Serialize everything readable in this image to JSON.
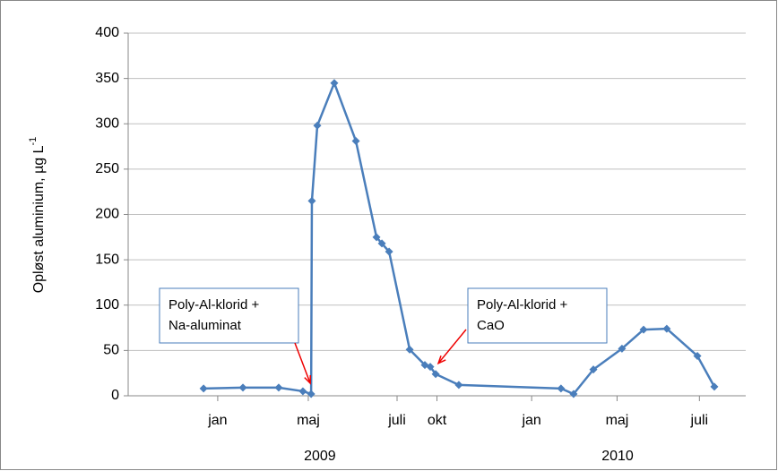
{
  "chart_data": {
    "type": "line",
    "y_label": "Opløst aluminium,  µg L",
    "y_label_sup": "-1",
    "x": [
      2.93,
      4.46,
      5.85,
      6.79,
      7.11,
      7.14,
      7.35,
      8.01,
      8.85,
      9.65,
      9.86,
      10.14,
      10.94,
      11.53,
      11.74,
      11.95,
      12.85,
      16.82,
      17.31,
      18.08,
      19.19,
      20.03,
      20.93,
      22.12,
      22.78
    ],
    "series": [
      {
        "name": "Opløst aluminium",
        "color": "#4a7ebb",
        "values": [
          8,
          9,
          9,
          5,
          2,
          215,
          298,
          345,
          281,
          175,
          168,
          159,
          51,
          34,
          32,
          24,
          12,
          8,
          2,
          29,
          52,
          73,
          74,
          44,
          10
        ]
      }
    ],
    "xlim": [
      0,
      24
    ],
    "xticks": [
      {
        "value": 3.48,
        "label": "jan"
      },
      {
        "value": 7.0,
        "label": "maj"
      },
      {
        "value": 10.45,
        "label": "juli"
      },
      {
        "value": 12.0,
        "label": "okt"
      },
      {
        "value": 15.68,
        "label": "jan"
      },
      {
        "value": 19.0,
        "label": "maj"
      },
      {
        "value": 22.2,
        "label": "juli"
      }
    ],
    "x_groups": [
      {
        "value": 7.45,
        "label": "2009"
      },
      {
        "value": 19.02,
        "label": "2010"
      }
    ],
    "ylim": [
      0,
      400
    ],
    "yticks": [
      0,
      50,
      100,
      150,
      200,
      250,
      300,
      350,
      400
    ],
    "grid": true,
    "annotations": [
      {
        "lines": [
          "Poly-Al-klorid +",
          "Na-aluminat"
        ],
        "x": 7.11,
        "y": 2
      },
      {
        "lines": [
          "Poly-Al-klorid +",
          "CaO"
        ],
        "x": 11.95,
        "y": 24
      }
    ]
  }
}
